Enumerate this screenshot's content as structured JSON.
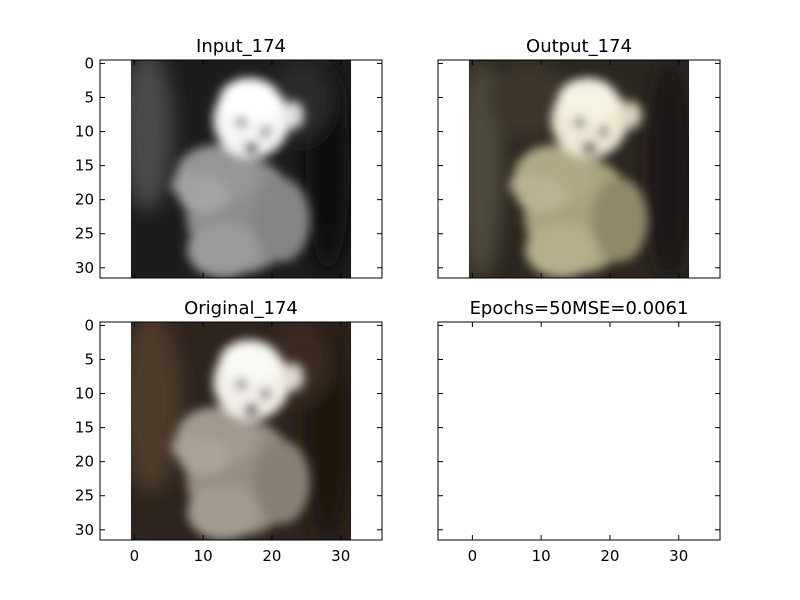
{
  "chart_data": [
    {
      "type": "heatmap",
      "title": "Input_174",
      "xlim": [
        -5,
        36
      ],
      "ylim": [
        31.5,
        -0.5
      ],
      "image_extent": [
        -0.5,
        31.5
      ],
      "xticks": [],
      "yticks": [
        0,
        5,
        10,
        15,
        20,
        25,
        30
      ],
      "colormap": "gray"
    },
    {
      "type": "heatmap",
      "title": "Output_174",
      "xlim": [
        -5,
        36
      ],
      "ylim": [
        31.5,
        -0.5
      ],
      "image_extent": [
        -0.5,
        31.5
      ],
      "xticks": [],
      "yticks": [],
      "colormap": "rgb"
    },
    {
      "type": "heatmap",
      "title": "Original_174",
      "xlim": [
        -5,
        36
      ],
      "ylim": [
        31.5,
        -0.5
      ],
      "image_extent": [
        -0.5,
        31.5
      ],
      "xticks": [
        0,
        10,
        20,
        30
      ],
      "yticks": [
        0,
        5,
        10,
        15,
        20,
        25,
        30
      ],
      "colormap": "rgb"
    },
    {
      "type": "heatmap",
      "title": "Epochs=50MSE=0.0061",
      "xlim": [
        -5,
        36
      ],
      "ylim": [
        31.5,
        -0.5
      ],
      "xticks": [
        0,
        10,
        20,
        30
      ],
      "yticks": []
    }
  ]
}
